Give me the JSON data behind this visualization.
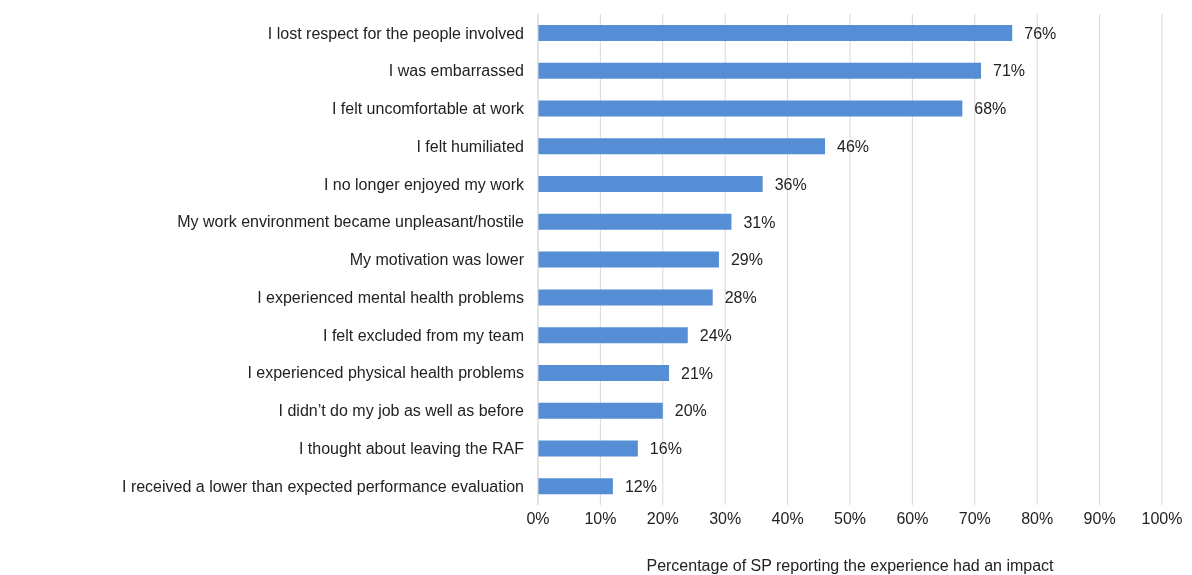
{
  "chart_data": {
    "type": "bar",
    "orientation": "horizontal",
    "xlabel": "Percentage of SP reporting the experience had an impact",
    "categories": [
      "I lost respect for the people involved",
      "I was embarrassed",
      "I felt uncomfortable at work",
      "I felt humiliated",
      "I no longer enjoyed my work",
      "My work environment became unpleasant/hostile",
      "My motivation was lower",
      "I experienced mental health problems",
      "I felt excluded from my team",
      "I experienced physical health problems ",
      "I didn’t do my job as well as before",
      "I thought about leaving the RAF",
      "I received a lower than expected performance evaluation"
    ],
    "values": [
      76,
      71,
      68,
      46,
      36,
      31,
      29,
      28,
      24,
      21,
      20,
      16,
      12
    ],
    "value_labels": [
      "76%",
      "71%",
      "68%",
      "46%",
      "36%",
      "31%",
      "29%",
      "28%",
      "24%",
      "21%",
      "20%",
      "16%",
      "12%"
    ],
    "color": "#558ed5",
    "xlim": [
      0,
      100
    ],
    "xticks": [
      {
        "value": 0,
        "label": "0%"
      },
      {
        "value": 10,
        "label": "10%"
      },
      {
        "value": 20,
        "label": "20%"
      },
      {
        "value": 30,
        "label": "30%"
      },
      {
        "value": 40,
        "label": "40%"
      },
      {
        "value": 50,
        "label": "50%"
      },
      {
        "value": 60,
        "label": "60%"
      },
      {
        "value": 70,
        "label": "70%"
      },
      {
        "value": 80,
        "label": "80%"
      },
      {
        "value": 90,
        "label": "90%"
      },
      {
        "value": 100,
        "label": "100%"
      }
    ],
    "grid": "x",
    "legend": false
  }
}
